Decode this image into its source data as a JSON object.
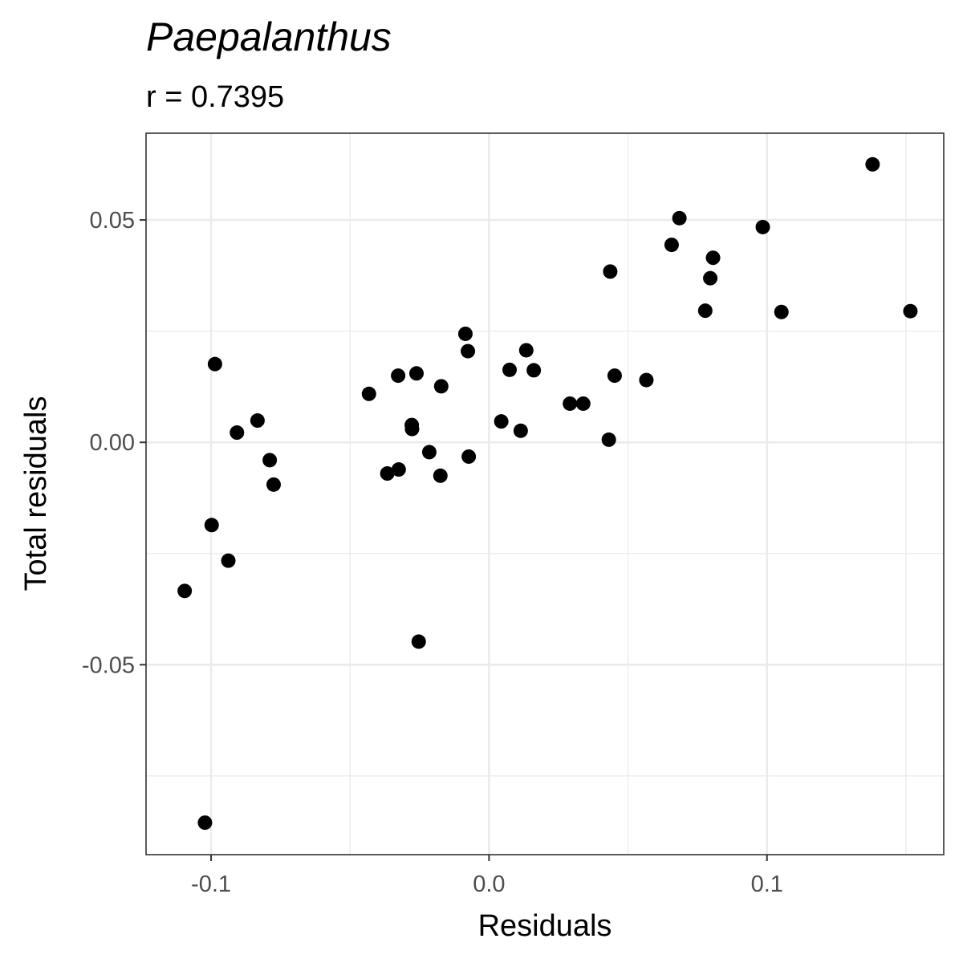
{
  "chart_data": {
    "type": "scatter",
    "title": "Paepalanthus",
    "subtitle": "r = 0.7395",
    "xlabel": "Residuals",
    "ylabel": "Total residuals",
    "xlim": [
      -0.1234,
      0.1636
    ],
    "ylim": [
      -0.0927,
      0.0695
    ],
    "x_ticks": [
      -0.1,
      0.0,
      0.1
    ],
    "x_tick_labels": [
      "-0.1",
      "0.0",
      "0.1"
    ],
    "y_ticks": [
      -0.05,
      0.0,
      0.05
    ],
    "y_tick_labels": [
      "-0.05",
      "0.00",
      "0.05"
    ],
    "grid": true,
    "point_color": "#000000",
    "points": [
      {
        "x": 0.138,
        "y": 0.0625
      },
      {
        "x": 0.0685,
        "y": 0.0504
      },
      {
        "x": 0.0985,
        "y": 0.0484
      },
      {
        "x": 0.0657,
        "y": 0.0444
      },
      {
        "x": 0.0806,
        "y": 0.0415
      },
      {
        "x": 0.0436,
        "y": 0.0384
      },
      {
        "x": 0.0796,
        "y": 0.0369
      },
      {
        "x": 0.0778,
        "y": 0.0296
      },
      {
        "x": 0.1052,
        "y": 0.0293
      },
      {
        "x": 0.1516,
        "y": 0.0295
      },
      {
        "x": -0.0085,
        "y": 0.0244
      },
      {
        "x": -0.0076,
        "y": 0.0205
      },
      {
        "x": 0.0134,
        "y": 0.0207
      },
      {
        "x": -0.0986,
        "y": 0.0176
      },
      {
        "x": 0.0074,
        "y": 0.0163
      },
      {
        "x": 0.0161,
        "y": 0.0162
      },
      {
        "x": -0.0261,
        "y": 0.0155
      },
      {
        "x": -0.0327,
        "y": 0.015
      },
      {
        "x": 0.0452,
        "y": 0.015
      },
      {
        "x": 0.0566,
        "y": 0.014
      },
      {
        "x": -0.0172,
        "y": 0.0126
      },
      {
        "x": -0.0432,
        "y": 0.0109
      },
      {
        "x": 0.0291,
        "y": 0.0087
      },
      {
        "x": 0.0339,
        "y": 0.0087
      },
      {
        "x": -0.0833,
        "y": 0.0049
      },
      {
        "x": 0.0044,
        "y": 0.0047
      },
      {
        "x": -0.0278,
        "y": 0.0039
      },
      {
        "x": -0.0277,
        "y": 0.003
      },
      {
        "x": 0.0114,
        "y": 0.0026
      },
      {
        "x": -0.0907,
        "y": 0.0022
      },
      {
        "x": 0.0431,
        "y": 0.0006
      },
      {
        "x": -0.0215,
        "y": -0.0022
      },
      {
        "x": -0.0073,
        "y": -0.0032
      },
      {
        "x": -0.0789,
        "y": -0.004
      },
      {
        "x": -0.0325,
        "y": -0.0061
      },
      {
        "x": -0.0366,
        "y": -0.007
      },
      {
        "x": -0.0175,
        "y": -0.0075
      },
      {
        "x": -0.0775,
        "y": -0.0095
      },
      {
        "x": -0.0998,
        "y": -0.0186
      },
      {
        "x": -0.0938,
        "y": -0.0266
      },
      {
        "x": -0.1095,
        "y": -0.0334
      },
      {
        "x": -0.0253,
        "y": -0.0448
      },
      {
        "x": -0.1022,
        "y": -0.0855
      }
    ]
  }
}
